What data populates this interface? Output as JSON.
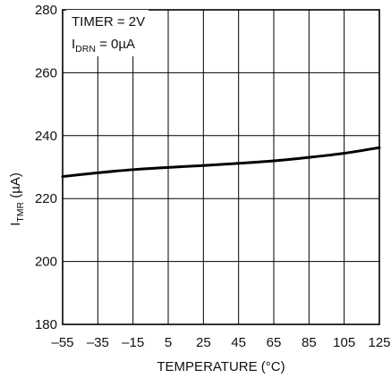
{
  "chart_data": {
    "type": "line",
    "title": "",
    "xlabel": "TEMPERATURE (°C)",
    "ylabel": {
      "main": "I",
      "sub": "TMR",
      "unit": " (µA)"
    },
    "xlim": [
      -55,
      125
    ],
    "ylim": [
      180,
      280
    ],
    "xticks": [
      -55,
      -35,
      -15,
      5,
      25,
      45,
      65,
      85,
      105,
      125
    ],
    "xtick_labels": [
      "–55",
      "–35",
      "–15",
      "5",
      "25",
      "45",
      "65",
      "85",
      "105",
      "125"
    ],
    "yticks": [
      180,
      200,
      220,
      240,
      260,
      280
    ],
    "ytick_labels": [
      "180",
      "200",
      "220",
      "240",
      "260",
      "280"
    ],
    "grid": true,
    "annotations": {
      "timer": "TIMER = 2V",
      "idrn_main": "I",
      "idrn_sub": "DRN",
      "idrn_rest": " = 0µA"
    },
    "series": [
      {
        "x": [
          -55,
          -35,
          -15,
          5,
          25,
          45,
          65,
          85,
          105,
          125
        ],
        "y": [
          227.0,
          228.2,
          229.2,
          229.9,
          230.5,
          231.2,
          232.0,
          233.1,
          234.4,
          236.2
        ]
      }
    ],
    "colors": {
      "line": "#000000",
      "grid": "#000000"
    }
  }
}
